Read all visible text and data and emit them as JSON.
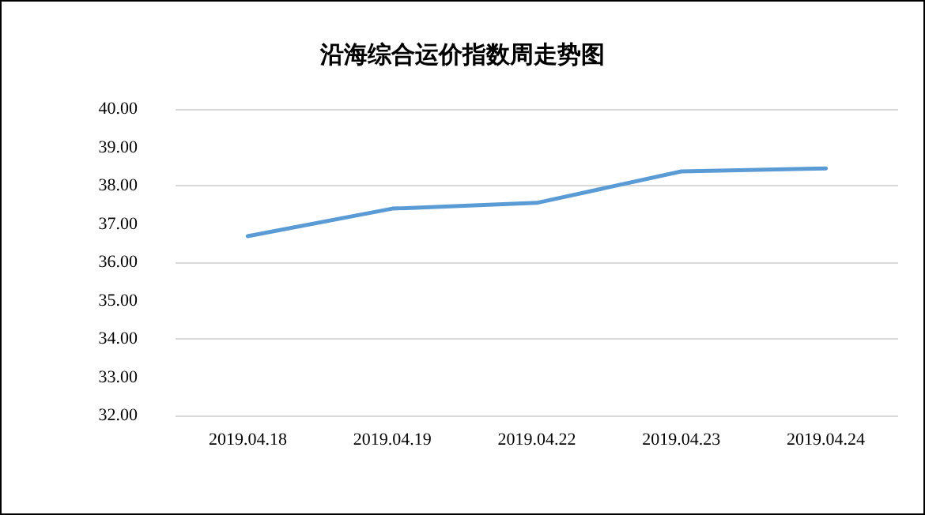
{
  "chart_data": {
    "type": "line",
    "title": "沿海综合运价指数周走势图",
    "categories": [
      "2019.04.18",
      "2019.04.19",
      "2019.04.22",
      "2019.04.23",
      "2019.04.24"
    ],
    "series": [
      {
        "color": "#5b9bd5",
        "values": [
          36.68,
          37.4,
          37.55,
          38.37,
          38.45
        ]
      }
    ],
    "ylim": [
      32,
      40
    ],
    "yticks": [
      {
        "value": 32,
        "label": "32.00"
      },
      {
        "value": 33,
        "label": "33.00"
      },
      {
        "value": 34,
        "label": "34.00"
      },
      {
        "value": 35,
        "label": "35.00"
      },
      {
        "value": 36,
        "label": "36.00"
      },
      {
        "value": 37,
        "label": "37.00"
      },
      {
        "value": 38,
        "label": "38.00"
      },
      {
        "value": 39,
        "label": "39.00"
      },
      {
        "value": 40,
        "label": "40.00"
      }
    ],
    "grid": "y",
    "marker": "none",
    "line_style": "solid"
  }
}
